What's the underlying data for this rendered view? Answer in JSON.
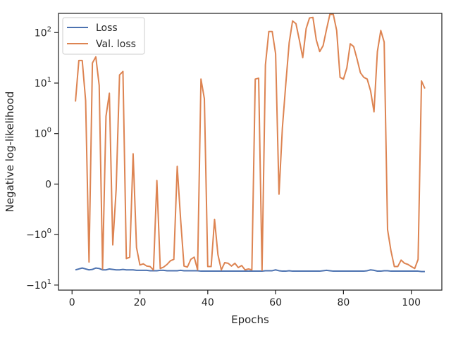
{
  "chart_data": {
    "type": "line",
    "title": "",
    "xlabel": "Epochs",
    "ylabel": "Negative log-likelihood",
    "xlim": [
      -4,
      109
    ],
    "yscale": "symlog",
    "grid": false,
    "legend": "top-left",
    "x_ticks": [
      0,
      20,
      40,
      60,
      80,
      100
    ],
    "x_tick_labels": [
      "0",
      "20",
      "40",
      "60",
      "80",
      "100"
    ],
    "y_ticks": [
      -10,
      -1,
      0,
      1,
      10,
      100
    ],
    "y_tick_labels": [
      {
        "base": "−10",
        "exp": "1"
      },
      {
        "base": "−10",
        "exp": "0"
      },
      {
        "base": "0",
        "exp": ""
      },
      {
        "base": "10",
        "exp": "0"
      },
      {
        "base": "10",
        "exp": "1"
      },
      {
        "base": "10",
        "exp": "2"
      }
    ],
    "series": [
      {
        "name": "Loss",
        "color": "#4c72b0",
        "x": [
          1,
          2,
          3,
          4,
          5,
          6,
          7,
          8,
          9,
          10,
          11,
          12,
          13,
          14,
          15,
          16,
          17,
          18,
          19,
          20,
          21,
          22,
          23,
          24,
          25,
          26,
          27,
          28,
          29,
          30,
          31,
          32,
          33,
          34,
          35,
          36,
          37,
          38,
          39,
          40,
          41,
          42,
          43,
          44,
          45,
          46,
          47,
          48,
          49,
          50,
          51,
          52,
          53,
          54,
          55,
          56,
          57,
          58,
          59,
          60,
          61,
          62,
          63,
          64,
          65,
          66,
          67,
          68,
          69,
          70,
          71,
          72,
          73,
          74,
          75,
          76,
          77,
          78,
          79,
          80,
          81,
          82,
          83,
          84,
          85,
          86,
          87,
          88,
          89,
          90,
          91,
          92,
          93,
          94,
          95,
          96,
          97,
          98,
          99,
          100,
          101,
          102,
          103,
          104
        ],
        "y": [
          -5.0,
          -4.8,
          -4.6,
          -4.8,
          -5.0,
          -4.9,
          -4.6,
          -4.7,
          -5.0,
          -5.0,
          -4.8,
          -4.9,
          -5.0,
          -5.0,
          -4.9,
          -5.0,
          -5.0,
          -5.0,
          -5.1,
          -5.1,
          -5.1,
          -5.1,
          -5.2,
          -5.2,
          -5.2,
          -5.1,
          -5.1,
          -5.2,
          -5.2,
          -5.2,
          -5.2,
          -5.1,
          -5.2,
          -5.2,
          -5.2,
          -5.2,
          -5.2,
          -5.3,
          -5.3,
          -5.3,
          -5.3,
          -5.3,
          -5.3,
          -5.3,
          -5.3,
          -5.3,
          -5.3,
          -5.3,
          -5.3,
          -5.3,
          -5.3,
          -5.3,
          -5.3,
          -5.3,
          -5.3,
          -5.3,
          -5.2,
          -5.2,
          -5.2,
          -5.0,
          -5.2,
          -5.3,
          -5.3,
          -5.2,
          -5.3,
          -5.3,
          -5.3,
          -5.3,
          -5.3,
          -5.3,
          -5.3,
          -5.3,
          -5.3,
          -5.2,
          -5.1,
          -5.2,
          -5.3,
          -5.3,
          -5.3,
          -5.3,
          -5.3,
          -5.3,
          -5.3,
          -5.3,
          -5.3,
          -5.3,
          -5.2,
          -5.0,
          -5.1,
          -5.3,
          -5.3,
          -5.2,
          -5.2,
          -5.3,
          -5.3,
          -5.3,
          -5.3,
          -5.3,
          -5.3,
          -5.3,
          -5.3,
          -5.3,
          -5.4,
          -5.4
        ]
      },
      {
        "name": "Val. loss",
        "color": "#dd8452",
        "x": [
          1,
          2,
          3,
          4,
          5,
          6,
          7,
          8,
          9,
          10,
          11,
          12,
          13,
          14,
          15,
          16,
          17,
          18,
          19,
          20,
          21,
          22,
          23,
          24,
          25,
          26,
          27,
          28,
          29,
          30,
          31,
          32,
          33,
          34,
          35,
          36,
          37,
          38,
          39,
          40,
          41,
          42,
          43,
          44,
          45,
          46,
          47,
          48,
          49,
          50,
          51,
          52,
          53,
          54,
          55,
          56,
          57,
          58,
          59,
          60,
          61,
          62,
          63,
          64,
          65,
          66,
          67,
          68,
          69,
          70,
          71,
          72,
          73,
          74,
          75,
          76,
          77,
          78,
          79,
          80,
          81,
          82,
          83,
          84,
          85,
          86,
          87,
          88,
          89,
          90,
          91,
          92,
          93,
          94,
          95,
          96,
          97,
          98,
          99,
          100,
          101,
          102,
          103,
          104
        ],
        "y": [
          4.3,
          28,
          28,
          4.5,
          -3.5,
          25,
          33,
          9,
          -4.8,
          2.2,
          6.3,
          -1.6,
          -0.1,
          14.5,
          17,
          -3,
          -2.8,
          0.6,
          -1.8,
          -4,
          -3.8,
          -4.2,
          -4.3,
          -5.0,
          0.07,
          -4.7,
          -4.4,
          -3.9,
          -3.3,
          -3.1,
          0.35,
          -0.7,
          -4.2,
          -4.4,
          -3.1,
          -2.8,
          -5.0,
          12,
          4.9,
          -4.3,
          -4.3,
          -0.7,
          -2.5,
          -5.0,
          -3.6,
          -3.7,
          -4.2,
          -3.7,
          -4.5,
          -4.1,
          -5.0,
          -4.8,
          -5.0,
          12,
          12.5,
          -5.1,
          23,
          105,
          105,
          38,
          -0.2,
          1.3,
          9.6,
          63,
          170,
          150,
          71,
          32,
          120,
          195,
          200,
          71,
          42,
          55,
          115,
          230,
          230,
          110,
          13,
          12,
          20,
          60,
          53,
          30,
          16,
          13,
          12,
          7,
          2.7,
          42,
          110,
          65,
          -0.9,
          -2.1,
          -4.3,
          -4.3,
          -3.2,
          -3.7,
          -3.9,
          -4.3,
          -4.7,
          -3.1,
          11,
          7.8
        ]
      }
    ]
  }
}
